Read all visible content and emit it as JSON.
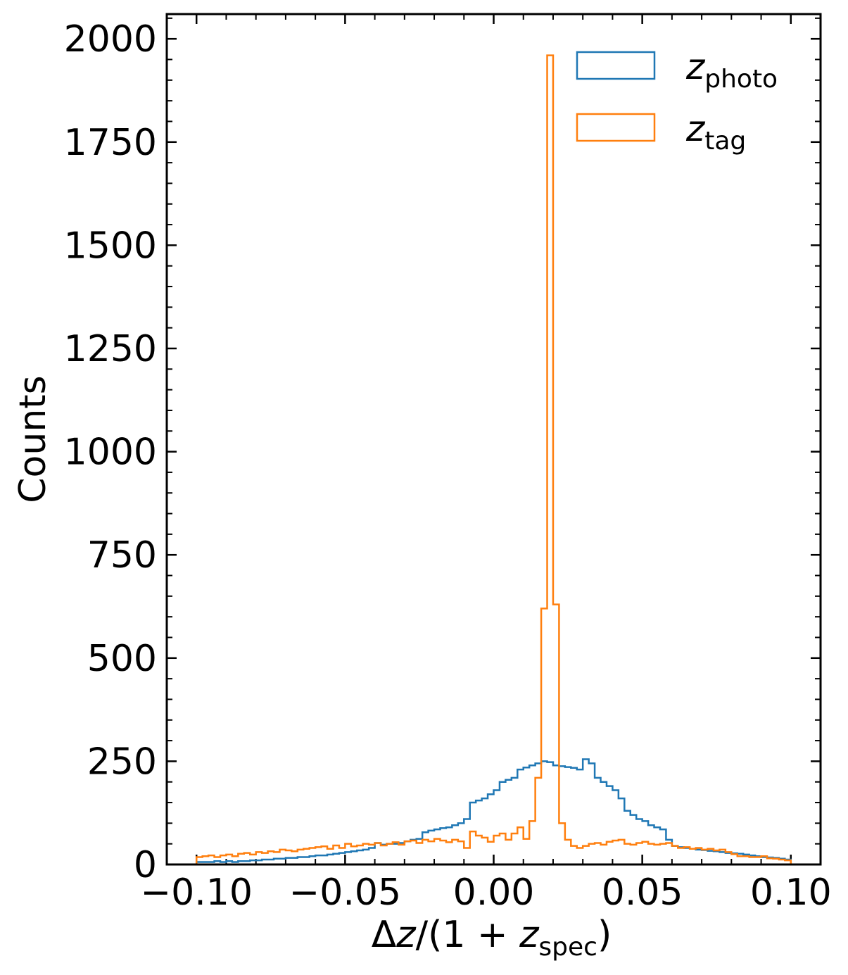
{
  "chart_data": {
    "type": "histogram",
    "xlabel": "Δz/(1 + z_spec)",
    "xlabel_parts": {
      "prefix": "Δ",
      "var": "z",
      "mid": "/(1 + ",
      "var2": "z",
      "sub": "spec",
      "suffix": ")"
    },
    "ylabel": "Counts",
    "xlim": [
      -0.11,
      0.11
    ],
    "ylim": [
      0,
      2060
    ],
    "xticks": [
      -0.1,
      -0.05,
      0.0,
      0.05,
      0.1
    ],
    "xtick_labels": [
      "−0.10",
      "−0.05",
      "0.00",
      "0.05",
      "0.10"
    ],
    "yticks": [
      0,
      250,
      500,
      750,
      1000,
      1250,
      1500,
      1750,
      2000
    ],
    "ytick_labels": [
      "0",
      "250",
      "500",
      "750",
      "1000",
      "1250",
      "1500",
      "1750",
      "2000"
    ],
    "bin_edges": {
      "start": -0.1,
      "width": 0.002,
      "count": 100
    },
    "legend": {
      "location": "top-right"
    },
    "series": [
      {
        "name": "z_photo",
        "label_var": "z",
        "label_sub": "photo",
        "color": "#1f77b4",
        "histtype": "step",
        "values": [
          6,
          6,
          6,
          8,
          6,
          8,
          6,
          8,
          8,
          10,
          10,
          12,
          12,
          14,
          14,
          16,
          16,
          18,
          18,
          20,
          22,
          22,
          24,
          26,
          28,
          30,
          32,
          34,
          36,
          40,
          52,
          48,
          50,
          50,
          52,
          56,
          60,
          62,
          78,
          82,
          85,
          88,
          90,
          95,
          100,
          110,
          150,
          155,
          160,
          170,
          180,
          200,
          205,
          210,
          230,
          235,
          240,
          245,
          250,
          248,
          240,
          238,
          236,
          234,
          230,
          255,
          245,
          210,
          200,
          190,
          180,
          160,
          130,
          120,
          110,
          105,
          95,
          90,
          85,
          60,
          45,
          42,
          40,
          38,
          36,
          35,
          33,
          32,
          30,
          28,
          27,
          26,
          24,
          22,
          20,
          18,
          17,
          16,
          14,
          12
        ]
      },
      {
        "name": "z_tag",
        "label_var": "z",
        "label_sub": "tag",
        "color": "#ff7f0e",
        "histtype": "step",
        "values": [
          18,
          20,
          22,
          18,
          22,
          24,
          20,
          26,
          28,
          24,
          30,
          28,
          32,
          30,
          36,
          34,
          32,
          36,
          38,
          40,
          42,
          44,
          38,
          46,
          40,
          50,
          44,
          46,
          50,
          48,
          52,
          46,
          50,
          54,
          48,
          56,
          58,
          52,
          60,
          56,
          62,
          58,
          54,
          60,
          56,
          40,
          80,
          70,
          65,
          55,
          70,
          75,
          60,
          75,
          90,
          62,
          105,
          210,
          620,
          1960,
          630,
          100,
          60,
          45,
          40,
          45,
          50,
          52,
          48,
          55,
          58,
          60,
          50,
          48,
          52,
          55,
          50,
          48,
          50,
          52,
          45,
          40,
          42,
          38,
          40,
          36,
          38,
          34,
          36,
          30,
          25,
          20,
          20,
          18,
          18,
          20,
          15,
          14,
          12,
          10
        ]
      }
    ]
  }
}
